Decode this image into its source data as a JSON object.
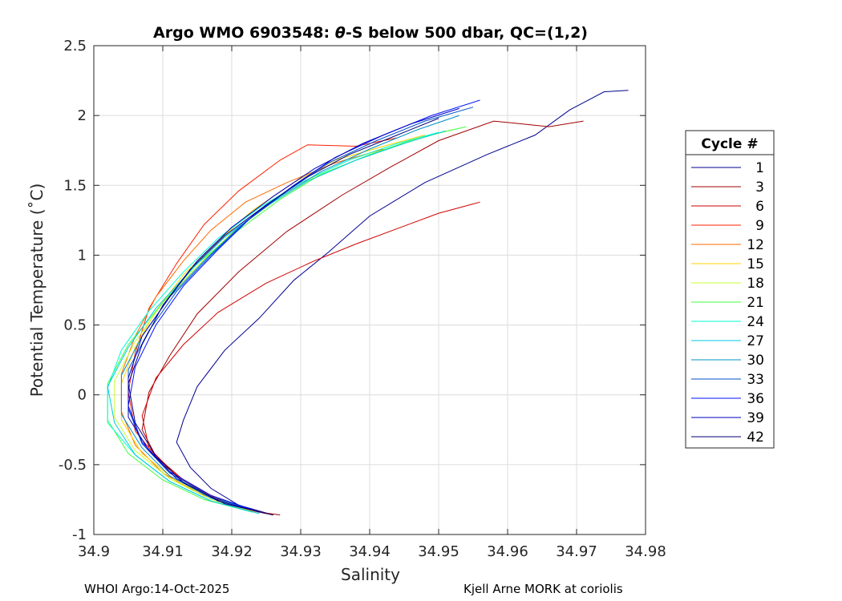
{
  "chart_data": {
    "type": "line",
    "title_prefix": "Argo WMO 6903548: ",
    "title_theta": "θ",
    "title_suffix": "-S below 500 dbar,  QC=(1,2)",
    "xlabel": "Salinity",
    "ylabel": "Potential Temperature (˚C)",
    "xlim": [
      34.9,
      34.98
    ],
    "ylim": [
      -1,
      2.5
    ],
    "xticks": [
      "34.9",
      "34.91",
      "34.92",
      "34.93",
      "34.94",
      "34.95",
      "34.96",
      "34.97",
      "34.98"
    ],
    "yticks": [
      "2.5",
      "2",
      "1.5",
      "1",
      "0.5",
      "0",
      "-0.5",
      "-1"
    ],
    "grid": true,
    "legend_title": "Cycle #",
    "legend_position": "right",
    "series": [
      {
        "name": "1",
        "color": "#00008f",
        "values": [
          [
            34.9775,
            2.18
          ],
          [
            34.974,
            2.17
          ],
          [
            34.969,
            2.04
          ],
          [
            34.964,
            1.86
          ],
          [
            34.957,
            1.72
          ],
          [
            34.948,
            1.52
          ],
          [
            34.94,
            1.28
          ],
          [
            34.934,
            1.02
          ],
          [
            34.929,
            0.82
          ],
          [
            34.924,
            0.55
          ],
          [
            34.919,
            0.32
          ],
          [
            34.915,
            0.06
          ],
          [
            34.913,
            -0.18
          ],
          [
            34.912,
            -0.34
          ],
          [
            34.914,
            -0.52
          ],
          [
            34.917,
            -0.67
          ],
          [
            34.921,
            -0.79
          ],
          [
            34.926,
            -0.86
          ]
        ]
      },
      {
        "name": "3",
        "color": "#a00000",
        "values": [
          [
            34.971,
            1.96
          ],
          [
            34.966,
            1.92
          ],
          [
            34.958,
            1.96
          ],
          [
            34.95,
            1.82
          ],
          [
            34.943,
            1.63
          ],
          [
            34.936,
            1.43
          ],
          [
            34.928,
            1.17
          ],
          [
            34.921,
            0.88
          ],
          [
            34.915,
            0.58
          ],
          [
            34.911,
            0.28
          ],
          [
            34.908,
            0.02
          ],
          [
            34.907,
            -0.25
          ],
          [
            34.909,
            -0.44
          ],
          [
            34.913,
            -0.61
          ],
          [
            34.918,
            -0.75
          ],
          [
            34.924,
            -0.84
          ],
          [
            34.927,
            -0.86
          ]
        ]
      },
      {
        "name": "6",
        "color": "#d00000",
        "values": [
          [
            34.956,
            1.38
          ],
          [
            34.95,
            1.3
          ],
          [
            34.944,
            1.19
          ],
          [
            34.938,
            1.08
          ],
          [
            34.932,
            0.96
          ],
          [
            34.925,
            0.8
          ],
          [
            34.918,
            0.59
          ],
          [
            34.913,
            0.36
          ],
          [
            34.909,
            0.12
          ],
          [
            34.907,
            -0.15
          ],
          [
            34.908,
            -0.38
          ],
          [
            34.912,
            -0.58
          ],
          [
            34.917,
            -0.73
          ],
          [
            34.923,
            -0.83
          ],
          [
            34.926,
            -0.86
          ]
        ]
      },
      {
        "name": "9",
        "color": "#ff2000",
        "values": [
          [
            34.944,
            1.84
          ],
          [
            34.938,
            1.78
          ],
          [
            34.931,
            1.79
          ],
          [
            34.927,
            1.68
          ],
          [
            34.921,
            1.46
          ],
          [
            34.916,
            1.22
          ],
          [
            34.912,
            0.94
          ],
          [
            34.908,
            0.62
          ],
          [
            34.906,
            0.3
          ],
          [
            34.905,
            0.02
          ],
          [
            34.906,
            -0.26
          ],
          [
            34.91,
            -0.5
          ],
          [
            34.915,
            -0.68
          ],
          [
            34.921,
            -0.8
          ],
          [
            34.926,
            -0.86
          ]
        ]
      },
      {
        "name": "12",
        "color": "#ff6a00",
        "values": [
          [
            34.942,
            1.76
          ],
          [
            34.935,
            1.66
          ],
          [
            34.928,
            1.52
          ],
          [
            34.922,
            1.38
          ],
          [
            34.917,
            1.18
          ],
          [
            34.913,
            0.96
          ],
          [
            34.909,
            0.7
          ],
          [
            34.906,
            0.42
          ],
          [
            34.904,
            0.15
          ],
          [
            34.904,
            -0.12
          ],
          [
            34.906,
            -0.36
          ],
          [
            34.91,
            -0.56
          ],
          [
            34.915,
            -0.7
          ],
          [
            34.921,
            -0.81
          ],
          [
            34.926,
            -0.86
          ]
        ]
      },
      {
        "name": "15",
        "color": "#ffd200",
        "values": [
          [
            34.948,
            1.86
          ],
          [
            34.942,
            1.78
          ],
          [
            34.935,
            1.68
          ],
          [
            34.929,
            1.52
          ],
          [
            34.923,
            1.32
          ],
          [
            34.918,
            1.1
          ],
          [
            34.913,
            0.86
          ],
          [
            34.909,
            0.6
          ],
          [
            34.906,
            0.34
          ],
          [
            34.904,
            0.08
          ],
          [
            34.904,
            -0.18
          ],
          [
            34.907,
            -0.42
          ],
          [
            34.912,
            -0.62
          ],
          [
            34.918,
            -0.76
          ],
          [
            34.924,
            -0.85
          ]
        ]
      },
      {
        "name": "18",
        "color": "#c8ff30",
        "values": [
          [
            34.952,
            1.9
          ],
          [
            34.946,
            1.82
          ],
          [
            34.939,
            1.7
          ],
          [
            34.932,
            1.56
          ],
          [
            34.926,
            1.38
          ],
          [
            34.92,
            1.16
          ],
          [
            34.915,
            0.92
          ],
          [
            34.91,
            0.66
          ],
          [
            34.906,
            0.38
          ],
          [
            34.903,
            0.1
          ],
          [
            34.903,
            -0.16
          ],
          [
            34.906,
            -0.4
          ],
          [
            34.911,
            -0.6
          ],
          [
            34.917,
            -0.75
          ],
          [
            34.923,
            -0.84
          ]
        ]
      },
      {
        "name": "21",
        "color": "#40ff40",
        "values": [
          [
            34.954,
            1.92
          ],
          [
            34.947,
            1.84
          ],
          [
            34.94,
            1.72
          ],
          [
            34.933,
            1.58
          ],
          [
            34.927,
            1.4
          ],
          [
            34.921,
            1.18
          ],
          [
            34.915,
            0.94
          ],
          [
            34.91,
            0.66
          ],
          [
            34.905,
            0.36
          ],
          [
            34.902,
            0.08
          ],
          [
            34.902,
            -0.18
          ],
          [
            34.905,
            -0.42
          ],
          [
            34.91,
            -0.61
          ],
          [
            34.916,
            -0.75
          ],
          [
            34.923,
            -0.84
          ]
        ]
      },
      {
        "name": "24",
        "color": "#00ffd0",
        "values": [
          [
            34.95,
            1.88
          ],
          [
            34.944,
            1.8
          ],
          [
            34.937,
            1.68
          ],
          [
            34.93,
            1.52
          ],
          [
            34.924,
            1.34
          ],
          [
            34.918,
            1.12
          ],
          [
            34.913,
            0.88
          ],
          [
            34.908,
            0.6
          ],
          [
            34.904,
            0.32
          ],
          [
            34.902,
            0.05
          ],
          [
            34.902,
            -0.2
          ],
          [
            34.906,
            -0.43
          ],
          [
            34.911,
            -0.62
          ],
          [
            34.917,
            -0.76
          ],
          [
            34.923,
            -0.84
          ]
        ]
      },
      {
        "name": "27",
        "color": "#00c8e6",
        "values": [
          [
            34.951,
            1.89
          ],
          [
            34.945,
            1.8
          ],
          [
            34.938,
            1.68
          ],
          [
            34.931,
            1.53
          ],
          [
            34.925,
            1.35
          ],
          [
            34.919,
            1.13
          ],
          [
            34.914,
            0.89
          ],
          [
            34.909,
            0.62
          ],
          [
            34.905,
            0.34
          ],
          [
            34.902,
            0.06
          ],
          [
            34.903,
            -0.2
          ],
          [
            34.906,
            -0.43
          ],
          [
            34.911,
            -0.62
          ],
          [
            34.917,
            -0.76
          ],
          [
            34.924,
            -0.85
          ]
        ]
      },
      {
        "name": "30",
        "color": "#0090c8",
        "values": [
          [
            34.953,
            2.0
          ],
          [
            34.947,
            1.9
          ],
          [
            34.94,
            1.76
          ],
          [
            34.933,
            1.6
          ],
          [
            34.927,
            1.42
          ],
          [
            34.921,
            1.2
          ],
          [
            34.916,
            0.96
          ],
          [
            34.911,
            0.7
          ],
          [
            34.907,
            0.42
          ],
          [
            34.904,
            0.14
          ],
          [
            34.904,
            -0.14
          ],
          [
            34.907,
            -0.38
          ],
          [
            34.911,
            -0.58
          ],
          [
            34.917,
            -0.74
          ],
          [
            34.924,
            -0.84
          ]
        ]
      },
      {
        "name": "33",
        "color": "#0050c8",
        "values": [
          [
            34.955,
            2.06
          ],
          [
            34.948,
            1.96
          ],
          [
            34.941,
            1.82
          ],
          [
            34.934,
            1.66
          ],
          [
            34.928,
            1.46
          ],
          [
            34.922,
            1.24
          ],
          [
            34.917,
            1.0
          ],
          [
            34.912,
            0.74
          ],
          [
            34.908,
            0.46
          ],
          [
            34.905,
            0.18
          ],
          [
            34.905,
            -0.1
          ],
          [
            34.907,
            -0.35
          ],
          [
            34.911,
            -0.56
          ],
          [
            34.917,
            -0.73
          ],
          [
            34.924,
            -0.84
          ]
        ]
      },
      {
        "name": "36",
        "color": "#0010ff",
        "values": [
          [
            34.956,
            2.11
          ],
          [
            34.949,
            2.0
          ],
          [
            34.942,
            1.86
          ],
          [
            34.935,
            1.7
          ],
          [
            34.929,
            1.5
          ],
          [
            34.923,
            1.28
          ],
          [
            34.918,
            1.04
          ],
          [
            34.913,
            0.78
          ],
          [
            34.909,
            0.5
          ],
          [
            34.906,
            0.2
          ],
          [
            34.905,
            -0.08
          ],
          [
            34.907,
            -0.34
          ],
          [
            34.911,
            -0.55
          ],
          [
            34.917,
            -0.72
          ],
          [
            34.924,
            -0.84
          ]
        ]
      },
      {
        "name": "39",
        "color": "#0000c0",
        "values": [
          [
            34.953,
            2.05
          ],
          [
            34.946,
            1.94
          ],
          [
            34.939,
            1.8
          ],
          [
            34.932,
            1.62
          ],
          [
            34.926,
            1.42
          ],
          [
            34.92,
            1.2
          ],
          [
            34.915,
            0.96
          ],
          [
            34.911,
            0.7
          ],
          [
            34.907,
            0.42
          ],
          [
            34.905,
            0.12
          ],
          [
            34.905,
            -0.16
          ],
          [
            34.908,
            -0.4
          ],
          [
            34.912,
            -0.6
          ],
          [
            34.918,
            -0.76
          ],
          [
            34.925,
            -0.85
          ]
        ]
      },
      {
        "name": "42",
        "color": "#00007a",
        "values": [
          [
            34.95,
            1.98
          ],
          [
            34.944,
            1.86
          ],
          [
            34.937,
            1.72
          ],
          [
            34.931,
            1.56
          ],
          [
            34.925,
            1.36
          ],
          [
            34.919,
            1.14
          ],
          [
            34.914,
            0.9
          ],
          [
            34.91,
            0.64
          ],
          [
            34.907,
            0.36
          ],
          [
            34.905,
            0.08
          ],
          [
            34.906,
            -0.2
          ],
          [
            34.909,
            -0.44
          ],
          [
            34.913,
            -0.63
          ],
          [
            34.919,
            -0.78
          ],
          [
            34.926,
            -0.86
          ]
        ]
      }
    ]
  },
  "footer": {
    "left": "WHOI Argo:14-Oct-2025",
    "right": "Kjell Arne MORK at coriolis"
  }
}
